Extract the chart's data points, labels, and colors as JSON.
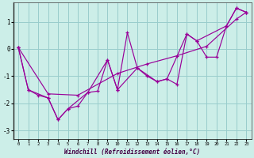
{
  "xlabel": "Windchill (Refroidissement éolien,°C)",
  "background_color": "#cceee8",
  "grid_color": "#99cccc",
  "line_color": "#990099",
  "xlim": [
    -0.5,
    23.5
  ],
  "ylim": [
    -3.3,
    1.7
  ],
  "yticks": [
    -3,
    -2,
    -1,
    0,
    1
  ],
  "xticks": [
    0,
    1,
    2,
    3,
    4,
    5,
    6,
    7,
    8,
    9,
    10,
    11,
    12,
    13,
    14,
    15,
    16,
    17,
    18,
    19,
    20,
    21,
    22,
    23
  ],
  "series": [
    {
      "x": [
        0,
        1,
        2,
        3,
        4,
        5,
        6,
        7,
        8,
        9,
        10,
        11,
        12,
        13,
        14,
        15,
        16,
        17,
        18,
        19,
        20,
        21,
        22,
        23
      ],
      "y": [
        0.05,
        -1.5,
        -1.7,
        -1.8,
        -2.6,
        -2.2,
        -2.1,
        -1.6,
        -1.55,
        -0.4,
        -1.5,
        0.6,
        -0.7,
        -1.0,
        -1.2,
        -1.1,
        -1.3,
        0.55,
        0.3,
        -0.3,
        -0.3,
        0.85,
        1.5,
        1.35
      ]
    },
    {
      "x": [
        0,
        3,
        6,
        10,
        13,
        16,
        19,
        22,
        23
      ],
      "y": [
        0.05,
        -1.65,
        -1.7,
        -0.9,
        -0.55,
        -0.25,
        0.1,
        1.1,
        1.35
      ]
    },
    {
      "x": [
        0,
        1,
        3,
        4,
        5,
        7,
        9,
        10,
        12,
        14,
        15,
        17,
        18,
        21,
        22,
        23
      ],
      "y": [
        0.05,
        -1.5,
        -1.8,
        -2.6,
        -2.2,
        -1.6,
        -0.4,
        -1.5,
        -0.7,
        -1.2,
        -1.1,
        0.55,
        0.3,
        0.85,
        1.5,
        1.35
      ]
    }
  ]
}
